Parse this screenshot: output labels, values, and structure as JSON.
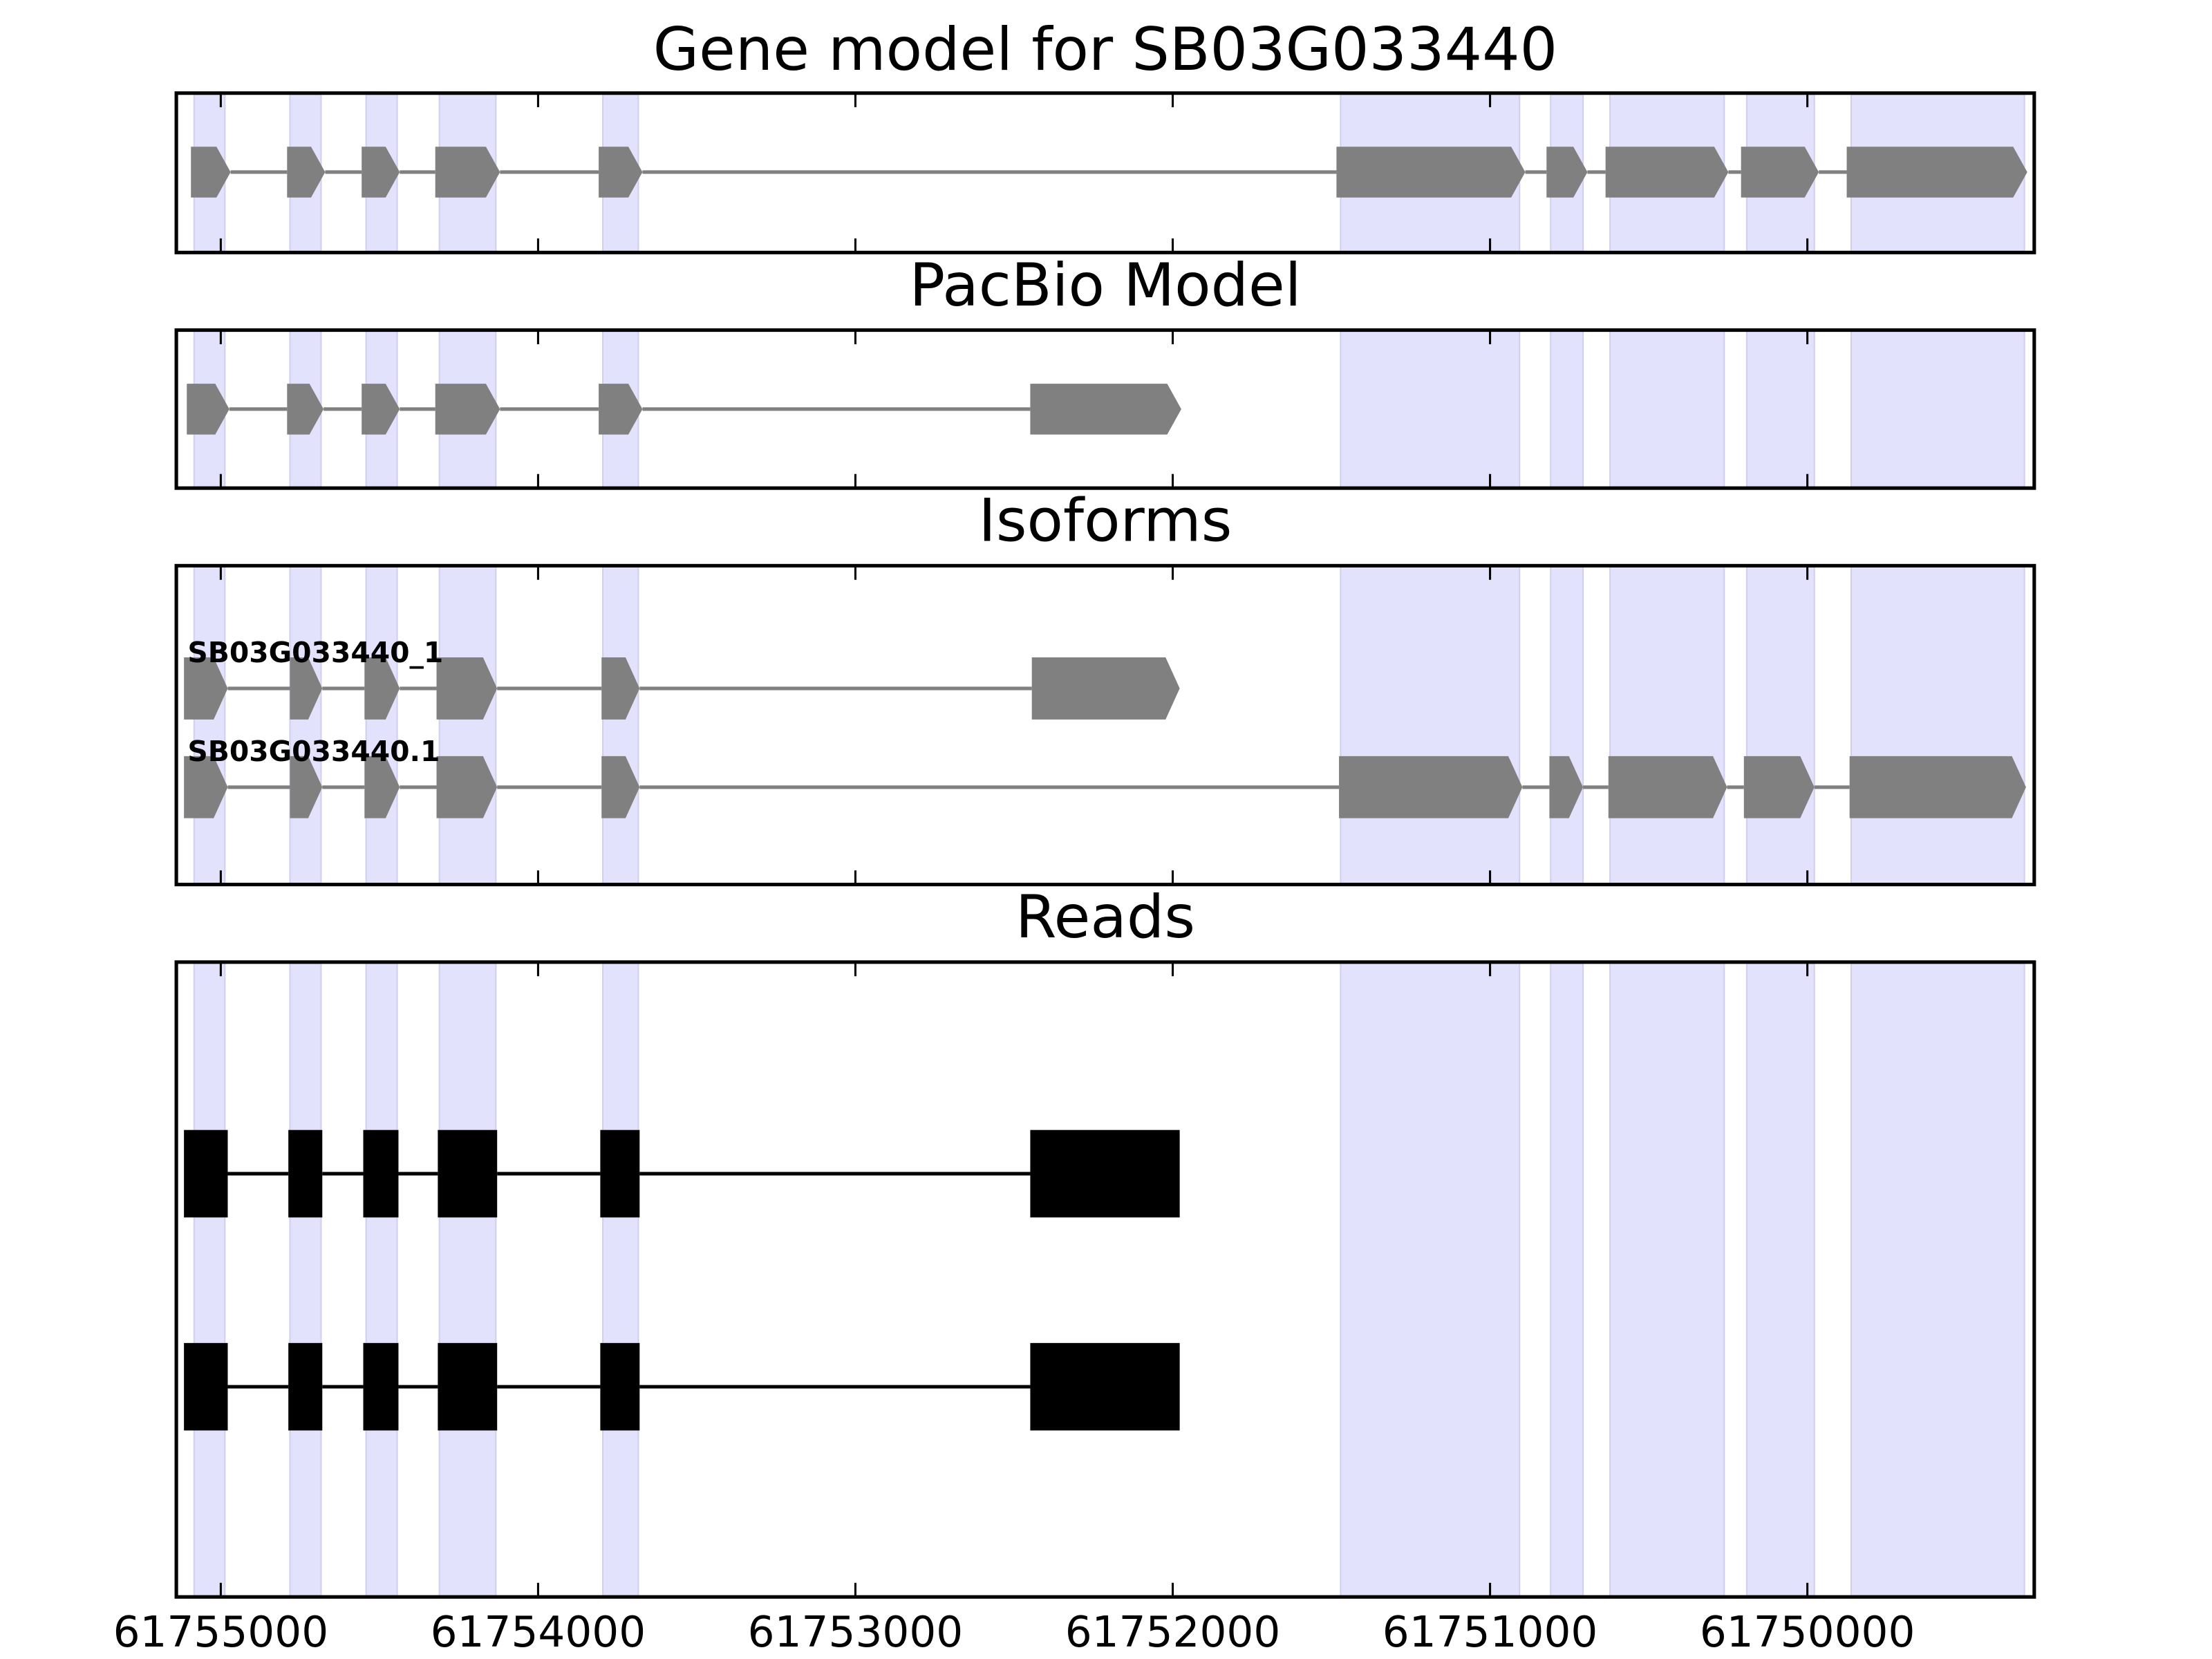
{
  "chart_data": {
    "type": "gene-tracks",
    "xlim": [
      61755140,
      61749285
    ],
    "xticks": [
      61755000,
      61754000,
      61753000,
      61752000,
      61751000,
      61750000
    ],
    "region_color": "#e2e2fc",
    "exon_color": "#808080",
    "read_color": "#000000",
    "regions": [
      [
        61755084,
        61754987
      ],
      [
        61754782,
        61754684
      ],
      [
        61754542,
        61754444
      ],
      [
        61754311,
        61754133
      ],
      [
        61753796,
        61753684
      ],
      [
        61751471,
        61750907
      ],
      [
        61750809,
        61750707
      ],
      [
        61750622,
        61750262
      ],
      [
        61750191,
        61749978
      ],
      [
        61749862,
        61749316
      ]
    ],
    "panels": [
      {
        "title": "Gene model for SB03G033440",
        "style": "arrow",
        "tracks": [
          {
            "exons": [
              [
                61755094,
                61754969
              ],
              [
                61754791,
                61754671
              ],
              [
                61754556,
                61754436
              ],
              [
                61754324,
                61754120
              ],
              [
                61753809,
                61753671
              ],
              [
                61751484,
                61750889
              ],
              [
                61750822,
                61750693
              ],
              [
                61750636,
                61750249
              ],
              [
                61750209,
                61749964
              ],
              [
                61749876,
                61749307
              ]
            ]
          }
        ]
      },
      {
        "title": "PacBio Model",
        "style": "arrow",
        "tracks": [
          {
            "exons": [
              [
                61755107,
                61754973
              ],
              [
                61754791,
                61754676
              ],
              [
                61754556,
                61754436
              ],
              [
                61754324,
                61754120
              ],
              [
                61753809,
                61753671
              ],
              [
                61752449,
                61751973
              ]
            ]
          }
        ]
      },
      {
        "title": "Isoforms",
        "style": "arrow",
        "tracks": [
          {
            "name": "SB03G033440_1",
            "exons": [
              [
                61755116,
                61754978
              ],
              [
                61754782,
                61754680
              ],
              [
                61754547,
                61754436
              ],
              [
                61754320,
                61754129
              ],
              [
                61753800,
                61753680
              ],
              [
                61752444,
                61751978
              ]
            ]
          },
          {
            "name": "SB03G033440.1",
            "exons": [
              [
                61755116,
                61754978
              ],
              [
                61754782,
                61754680
              ],
              [
                61754547,
                61754436
              ],
              [
                61754320,
                61754129
              ],
              [
                61753800,
                61753680
              ],
              [
                61751476,
                61750898
              ],
              [
                61750813,
                61750707
              ],
              [
                61750627,
                61750253
              ],
              [
                61750200,
                61749978
              ],
              [
                61749867,
                61749311
              ]
            ]
          }
        ]
      },
      {
        "title": "Reads",
        "style": "block",
        "tracks": [
          {
            "exons": [
              [
                61755116,
                61754978
              ],
              [
                61754787,
                61754680
              ],
              [
                61754551,
                61754440
              ],
              [
                61754316,
                61754129
              ],
              [
                61753804,
                61753680
              ],
              [
                61752449,
                61751978
              ]
            ]
          },
          {
            "exons": [
              [
                61755116,
                61754978
              ],
              [
                61754787,
                61754680
              ],
              [
                61754551,
                61754440
              ],
              [
                61754316,
                61754129
              ],
              [
                61753804,
                61753680
              ],
              [
                61752449,
                61751978
              ]
            ]
          }
        ]
      }
    ]
  }
}
